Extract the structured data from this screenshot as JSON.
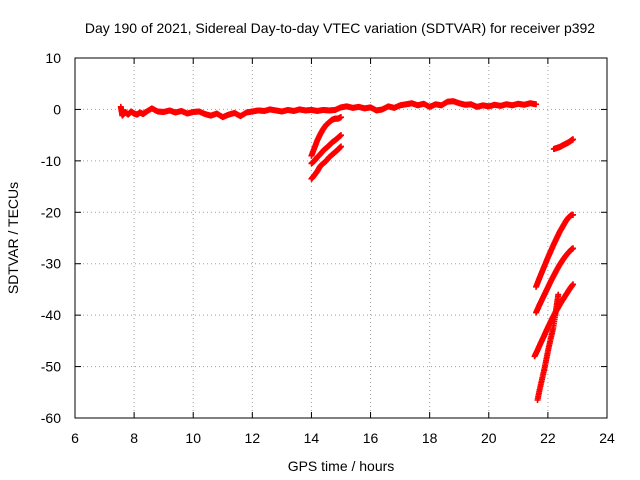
{
  "chart_data": {
    "type": "scatter",
    "title": "Day 190 of 2021, Sidereal Day-to-day VTEC variation (SDTVAR) for receiver p392",
    "xlabel": "GPS time / hours",
    "ylabel": "SDTVAR / TECUs",
    "xlim": [
      6,
      24
    ],
    "ylim": [
      -60,
      10
    ],
    "xticks": [
      "6",
      "8",
      "10",
      "12",
      "14",
      "16",
      "18",
      "20",
      "22",
      "24"
    ],
    "yticks": [
      "10",
      "0",
      "-10",
      "-20",
      "-30",
      "-40",
      "-50",
      "-60"
    ],
    "grid": true,
    "marker": "+",
    "series": [
      {
        "name": "SDTVAR",
        "color": "#ff0000",
        "segments": [
          {
            "x": [
              7.55,
              7.6,
              7.7,
              7.8,
              7.9,
              8.0,
              8.1,
              8.2,
              8.3,
              8.4,
              8.6,
              8.8,
              9.0,
              9.2,
              9.4,
              9.6,
              9.8,
              10.0,
              10.2,
              10.4,
              10.6,
              10.8,
              11.0,
              11.2,
              11.4,
              11.6,
              11.8,
              12.0,
              12.2,
              12.4,
              12.6,
              12.8,
              13.0,
              13.2,
              13.4,
              13.6,
              13.8,
              14.0,
              14.2,
              14.4,
              14.6,
              14.8,
              15.0,
              15.2,
              15.4,
              15.6,
              15.8,
              16.0,
              16.2,
              16.4,
              16.6,
              16.8,
              17.0,
              17.2,
              17.4,
              17.6,
              17.8,
              18.0,
              18.2,
              18.4,
              18.6,
              18.8,
              19.0,
              19.2,
              19.4,
              19.6,
              19.8,
              20.0,
              20.2,
              20.4,
              20.6,
              20.8,
              21.0,
              21.2,
              21.4,
              21.6
            ],
            "y": [
              0.5,
              -1.2,
              -0.5,
              -1.0,
              -0.4,
              -0.8,
              -1.0,
              -0.6,
              -0.9,
              -0.5,
              0.2,
              -0.4,
              -0.5,
              -0.2,
              -0.6,
              -0.3,
              -0.8,
              -0.5,
              -0.4,
              -0.9,
              -1.2,
              -0.8,
              -1.5,
              -1.0,
              -0.7,
              -1.3,
              -0.6,
              -0.4,
              -0.2,
              -0.3,
              0.0,
              -0.2,
              -0.4,
              -0.1,
              -0.3,
              0.0,
              -0.2,
              -0.1,
              -0.3,
              -0.1,
              -0.2,
              -0.1,
              0.4,
              0.6,
              0.3,
              0.5,
              0.2,
              0.4,
              -0.2,
              0.0,
              0.6,
              0.3,
              0.8,
              1.0,
              1.2,
              0.8,
              1.1,
              0.5,
              1.0,
              0.8,
              1.5,
              1.6,
              1.2,
              0.9,
              1.0,
              0.5,
              0.8,
              0.6,
              0.9,
              0.7,
              1.0,
              0.8,
              1.1,
              0.9,
              1.2,
              1.0
            ]
          },
          {
            "x": [
              14.0,
              14.1,
              14.2,
              14.3,
              14.4,
              14.5,
              14.6,
              14.7,
              14.8,
              14.9,
              15.0
            ],
            "y": [
              -9.0,
              -7.5,
              -6.0,
              -4.8,
              -3.8,
              -3.0,
              -2.5,
              -2.0,
              -1.8,
              -1.8,
              -1.5
            ]
          },
          {
            "x": [
              14.0,
              14.1,
              14.2,
              14.3,
              14.4,
              14.5,
              14.6,
              14.7,
              14.8,
              14.9,
              15.0
            ],
            "y": [
              -10.5,
              -10.0,
              -9.3,
              -8.7,
              -8.0,
              -7.5,
              -7.0,
              -6.4,
              -6.0,
              -5.5,
              -5.0
            ]
          },
          {
            "x": [
              14.0,
              14.1,
              14.2,
              14.3,
              14.4,
              14.5,
              14.6,
              14.7,
              14.8,
              14.9,
              15.0
            ],
            "y": [
              -13.5,
              -12.8,
              -12.0,
              -11.0,
              -10.5,
              -10.0,
              -9.3,
              -8.8,
              -8.3,
              -7.8,
              -7.2
            ]
          },
          {
            "x": [
              22.2,
              22.3,
              22.4,
              22.5,
              22.6,
              22.7,
              22.8,
              22.85
            ],
            "y": [
              -7.7,
              -7.5,
              -7.3,
              -7.0,
              -6.7,
              -6.4,
              -6.0,
              -5.8
            ]
          },
          {
            "x": [
              21.6,
              21.7,
              21.8,
              21.9,
              22.0,
              22.1,
              22.2,
              22.3,
              22.4,
              22.5,
              22.6,
              22.7,
              22.8,
              22.85
            ],
            "y": [
              -34.5,
              -33.0,
              -31.6,
              -30.2,
              -28.8,
              -27.5,
              -26.2,
              -25.0,
              -23.8,
              -22.8,
              -21.8,
              -21.0,
              -20.5,
              -20.5
            ]
          },
          {
            "x": [
              21.6,
              21.7,
              21.8,
              21.9,
              22.0,
              22.1,
              22.2,
              22.3,
              22.4,
              22.5,
              22.6,
              22.7,
              22.8,
              22.85
            ],
            "y": [
              -39.5,
              -38.2,
              -37.0,
              -35.8,
              -34.6,
              -33.4,
              -32.3,
              -31.2,
              -30.2,
              -29.3,
              -28.5,
              -27.8,
              -27.2,
              -27.0
            ]
          },
          {
            "x": [
              21.55,
              21.65,
              21.75,
              21.85,
              21.95,
              22.05,
              22.15,
              22.25,
              22.35,
              22.45,
              22.55,
              22.65,
              22.75,
              22.85
            ],
            "y": [
              -48.0,
              -46.8,
              -45.5,
              -44.3,
              -43.0,
              -41.8,
              -40.6,
              -39.5,
              -38.5,
              -37.5,
              -36.6,
              -35.7,
              -34.8,
              -34.0
            ]
          },
          {
            "x": [
              21.65,
              21.72,
              21.8,
              21.88,
              21.95,
              22.02,
              22.1,
              22.18,
              22.25,
              22.3,
              22.35
            ],
            "y": [
              -56.5,
              -54.5,
              -52.5,
              -50.5,
              -48.5,
              -46.5,
              -44.5,
              -42.5,
              -40.0,
              -38.0,
              -36.0
            ]
          }
        ]
      }
    ]
  }
}
